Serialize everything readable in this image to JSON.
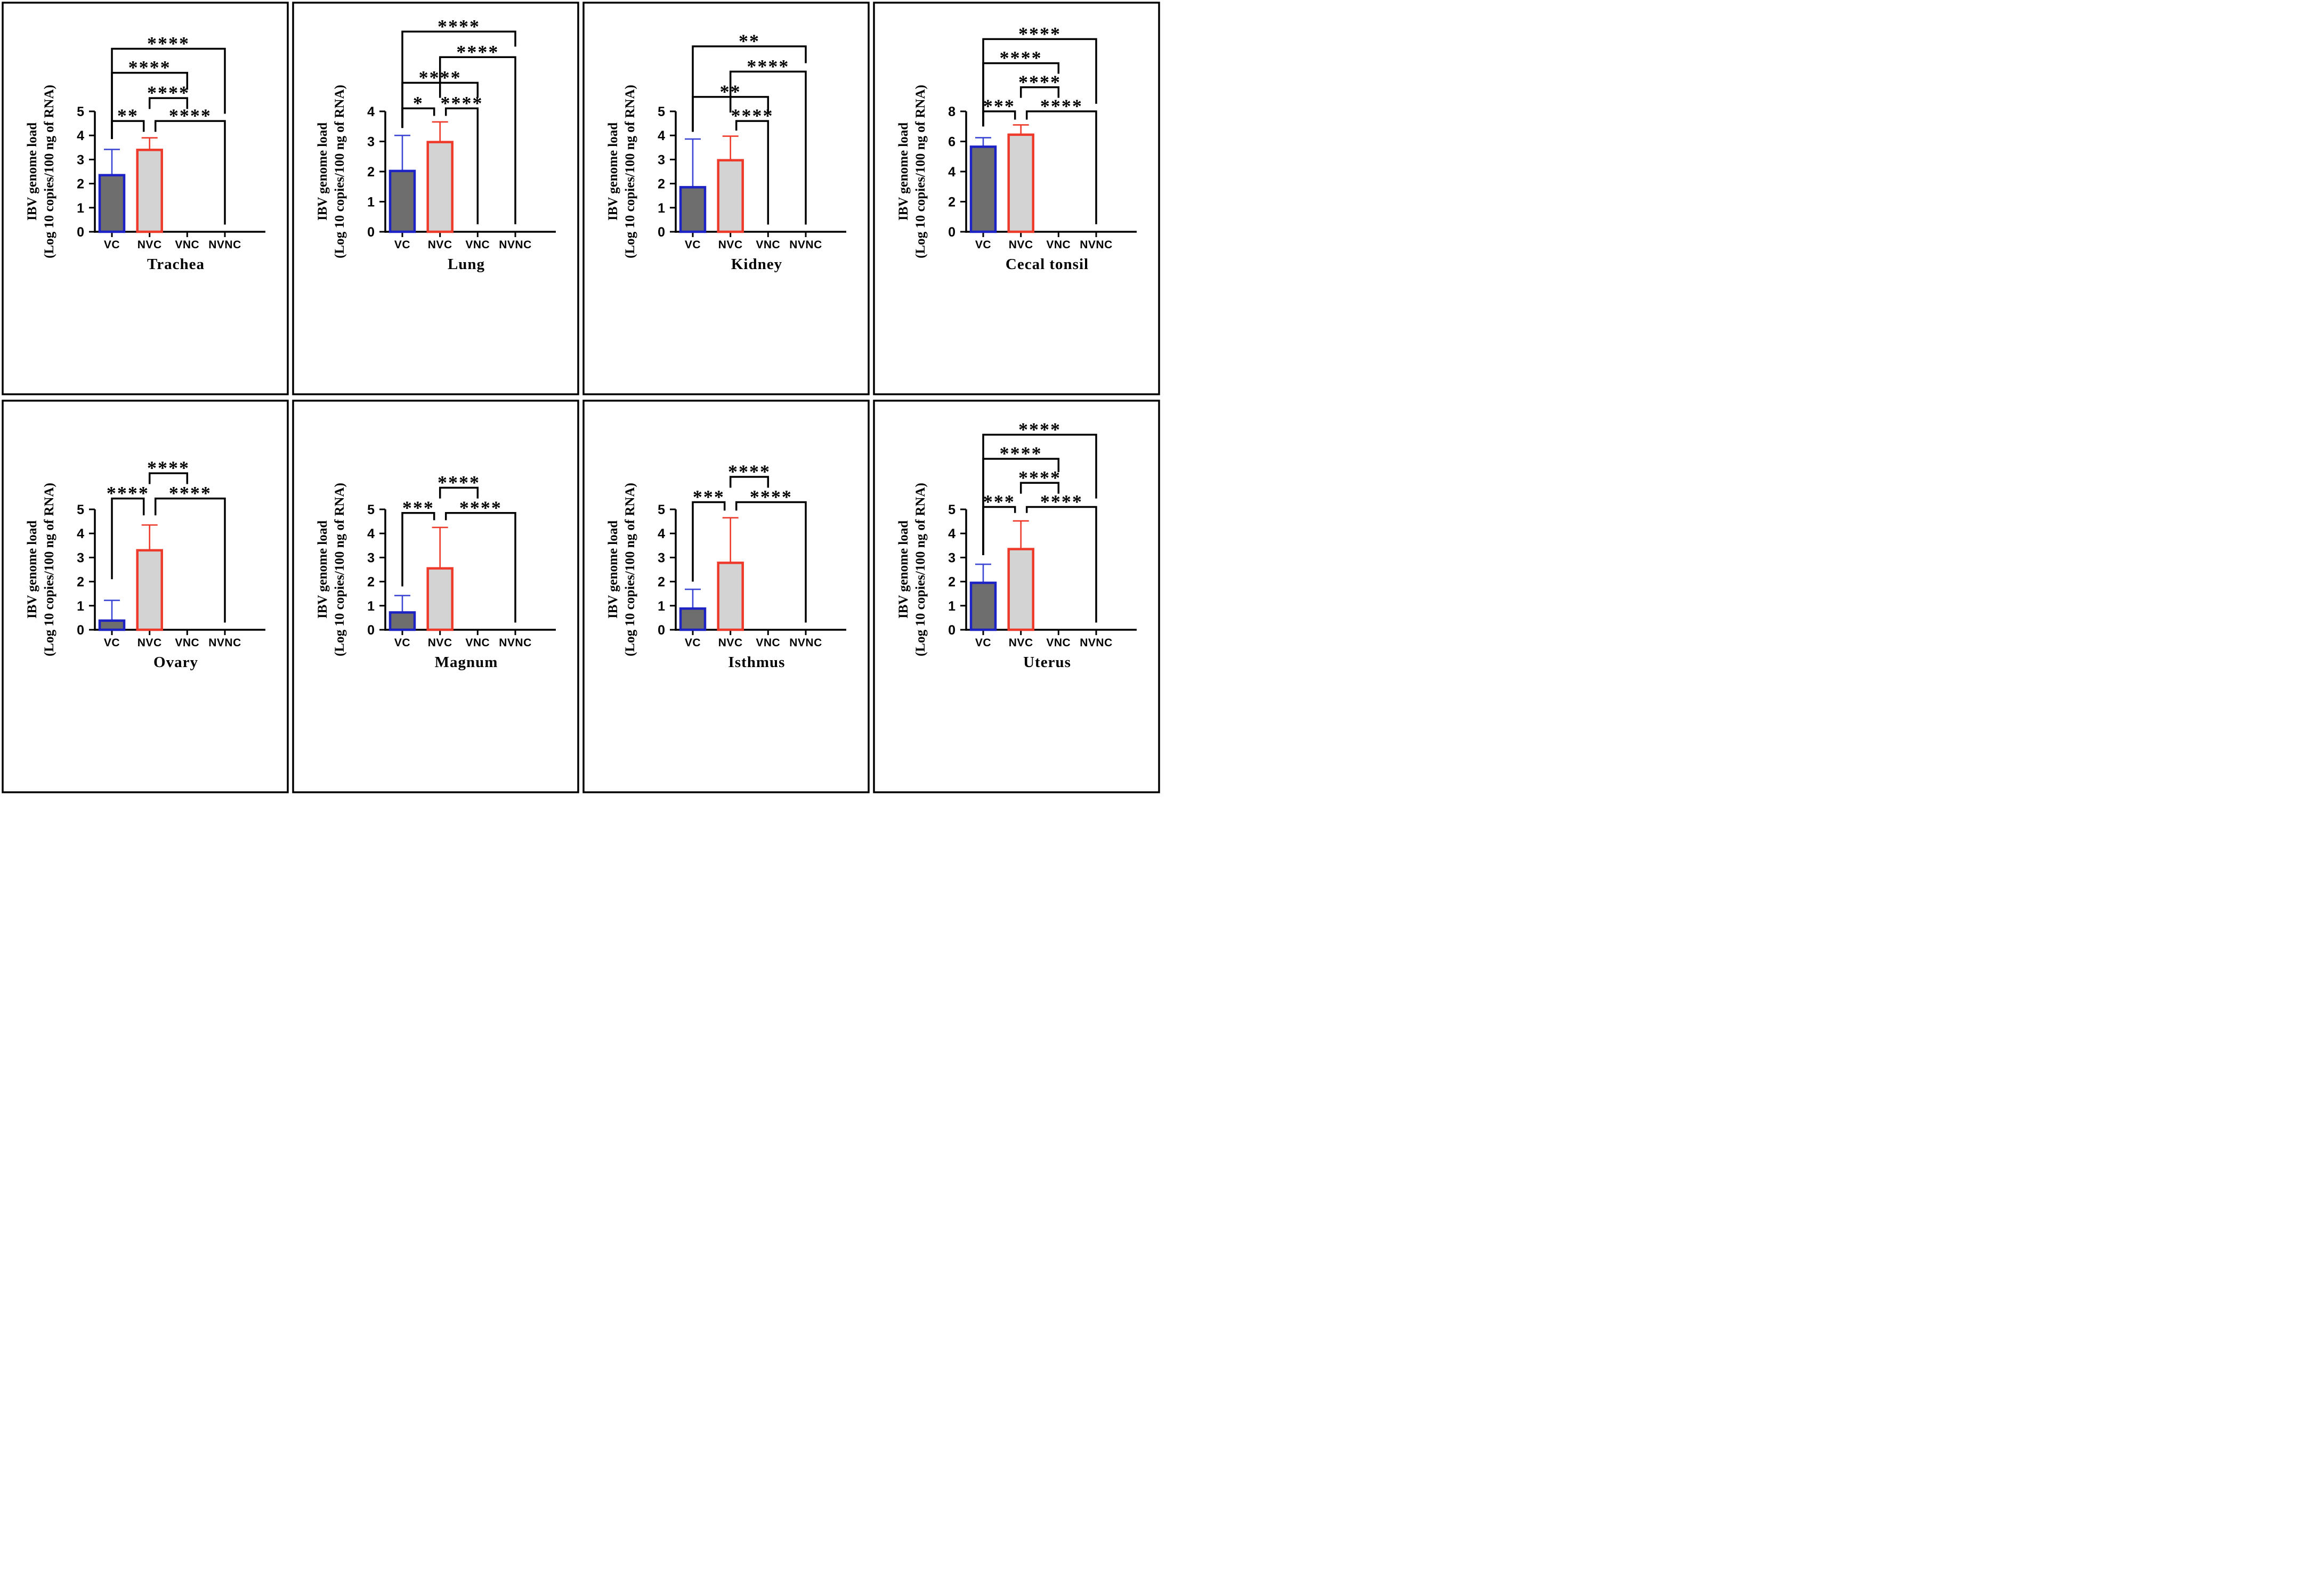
{
  "figure": {
    "y_axis_title_line1": "IBV genome load",
    "y_axis_title_line2": "(Log 10 copies/100 ng of RNA)",
    "categories": [
      "VC",
      "NVC",
      "VNC",
      "NVNC"
    ],
    "colors": {
      "vc_fill": "#6e6e6e",
      "vc_edge": "#1c22c3",
      "vc_error": "#3b46d2",
      "nvc_fill": "#d3d3d3",
      "nvc_edge": "#ee3a2a",
      "nvc_error": "#ee3a2a",
      "axis": "#000000",
      "frame": "#000000"
    }
  },
  "chart_data": [
    {
      "type": "bar",
      "title": "Trachea",
      "xlabel": "Trachea",
      "ylabel": "IBV genome load (Log 10 copies/100 ng of RNA)",
      "categories": [
        "VC",
        "NVC",
        "VNC",
        "NVNC"
      ],
      "ylim": [
        0,
        5
      ],
      "ytick_step": 1,
      "series": [
        {
          "name": "VC",
          "value": 2.35,
          "error_top": 3.42
        },
        {
          "name": "NVC",
          "value": 3.4,
          "error_top": 3.9
        },
        {
          "name": "VNC",
          "value": 0,
          "error_top": null
        },
        {
          "name": "NVNC",
          "value": 0,
          "error_top": null
        }
      ],
      "significance_brackets": [
        {
          "from": "VC",
          "to": "NVNC",
          "stars": "****",
          "level": 7.6,
          "from_end": 3.85,
          "to_end": 4.9
        },
        {
          "from": "VC",
          "to": "VNC",
          "stars": "****",
          "level": 6.6,
          "from_end": 3.85,
          "to_end": 5.9
        },
        {
          "from": "NVC",
          "to": "VNC",
          "stars": "****",
          "level": 5.55,
          "from_end": 5.1,
          "to_end": 5.1
        },
        {
          "from": "VC",
          "to": "NVC-",
          "stars": "**",
          "level": 4.6,
          "from_end": 3.85,
          "to_end": 4.15
        },
        {
          "from": "NVC+",
          "to": "NVNC",
          "stars": "****",
          "level": 4.6,
          "from_end": 4.15,
          "to_end": 0.3
        }
      ]
    },
    {
      "type": "bar",
      "title": "Lung",
      "xlabel": "Lung",
      "ylabel": "IBV genome load (Log 10 copies/100 ng of RNA)",
      "categories": [
        "VC",
        "NVC",
        "VNC",
        "NVNC"
      ],
      "ylim": [
        0,
        4
      ],
      "ytick_step": 1,
      "series": [
        {
          "name": "VC",
          "value": 2.02,
          "error_top": 3.2
        },
        {
          "name": "NVC",
          "value": 2.98,
          "error_top": 3.65
        },
        {
          "name": "VNC",
          "value": 0,
          "error_top": null
        },
        {
          "name": "NVNC",
          "value": 0,
          "error_top": null
        }
      ],
      "significance_brackets": [
        {
          "from": "VC",
          "to": "NVNC",
          "stars": "****",
          "level": 6.65,
          "from_end": 3.45,
          "to_end": 6.15
        },
        {
          "from": "NVC",
          "to": "NVNC",
          "stars": "****",
          "level": 5.8,
          "from_end": 4.45,
          "to_end": 0.25
        },
        {
          "from": "VC",
          "to": "VNC",
          "stars": "****",
          "level": 4.95,
          "from_end": 3.45,
          "to_end": 4.45
        },
        {
          "from": "VC",
          "to": "NVC-",
          "stars": "*",
          "level": 4.1,
          "from_end": 3.45,
          "to_end": 3.85
        },
        {
          "from": "NVC+",
          "to": "VNC",
          "stars": "****",
          "level": 4.1,
          "from_end": 3.85,
          "to_end": 0.25
        }
      ]
    },
    {
      "type": "bar",
      "title": "Kidney",
      "xlabel": "Kidney",
      "ylabel": "IBV genome load (Log 10 copies/100 ng of RNA)",
      "categories": [
        "VC",
        "NVC",
        "VNC",
        "NVNC"
      ],
      "ylim": [
        0,
        5
      ],
      "ytick_step": 1,
      "series": [
        {
          "name": "VC",
          "value": 1.85,
          "error_top": 3.85
        },
        {
          "name": "NVC",
          "value": 2.97,
          "error_top": 3.97
        },
        {
          "name": "VNC",
          "value": 0,
          "error_top": null
        },
        {
          "name": "NVNC",
          "value": 0,
          "error_top": null
        }
      ],
      "significance_brackets": [
        {
          "from": "VC",
          "to": "NVNC",
          "stars": "**",
          "level": 7.7,
          "from_end": 4.15,
          "to_end": 7.0
        },
        {
          "from": "NVC",
          "to": "NVNC",
          "stars": "****",
          "level": 6.65,
          "from_end": 4.95,
          "to_end": 0.3
        },
        {
          "from": "VC",
          "to": "VNC",
          "stars": "**",
          "level": 5.6,
          "from_end": 4.15,
          "to_end": 4.95
        },
        {
          "from": "NVC+",
          "to": "VNC",
          "stars": "****",
          "level": 4.6,
          "from_end": 4.2,
          "to_end": 0.3
        }
      ]
    },
    {
      "type": "bar",
      "title": "Cecal tonsil",
      "xlabel": "Cecal tonsil",
      "ylabel": "IBV genome load (Log 10 copies/100 ng of RNA)",
      "categories": [
        "VC",
        "NVC",
        "VNC",
        "NVNC"
      ],
      "ylim": [
        0,
        8
      ],
      "ytick_step": 2,
      "series": [
        {
          "name": "VC",
          "value": 5.65,
          "error_top": 6.25
        },
        {
          "name": "NVC",
          "value": 6.45,
          "error_top": 7.1
        },
        {
          "name": "VNC",
          "value": 0,
          "error_top": null
        },
        {
          "name": "NVNC",
          "value": 0,
          "error_top": null
        }
      ],
      "significance_brackets": [
        {
          "from": "VC",
          "to": "NVNC",
          "stars": "****",
          "level": 12.8,
          "from_end": 7.0,
          "to_end": 8.5
        },
        {
          "from": "VC",
          "to": "VNC",
          "stars": "****",
          "level": 11.2,
          "from_end": 7.0,
          "to_end": 10.5
        },
        {
          "from": "NVC",
          "to": "VNC",
          "stars": "****",
          "level": 9.6,
          "from_end": 8.9,
          "to_end": 8.9
        },
        {
          "from": "VC",
          "to": "NVC-",
          "stars": "***",
          "level": 8.0,
          "from_end": 7.0,
          "to_end": 7.45
        },
        {
          "from": "NVC+",
          "to": "NVNC",
          "stars": "****",
          "level": 8.0,
          "from_end": 7.45,
          "to_end": 0.5
        }
      ]
    },
    {
      "type": "bar",
      "title": "Ovary",
      "xlabel": "Ovary",
      "ylabel": "IBV genome load (Log 10 copies/100 ng of RNA)",
      "categories": [
        "VC",
        "NVC",
        "VNC",
        "NVNC"
      ],
      "ylim": [
        0,
        5
      ],
      "ytick_step": 1,
      "series": [
        {
          "name": "VC",
          "value": 0.38,
          "error_top": 1.22
        },
        {
          "name": "NVC",
          "value": 3.3,
          "error_top": 4.35
        },
        {
          "name": "VNC",
          "value": 0,
          "error_top": null
        },
        {
          "name": "NVNC",
          "value": 0,
          "error_top": null
        }
      ],
      "significance_brackets": [
        {
          "from": "NVC",
          "to": "VNC",
          "stars": "****",
          "level": 6.5,
          "from_end": 6.05,
          "to_end": 6.05
        },
        {
          "from": "VC",
          "to": "NVC-",
          "stars": "****",
          "level": 5.45,
          "from_end": 2.1,
          "to_end": 4.75
        },
        {
          "from": "NVC+",
          "to": "NVNC",
          "stars": "****",
          "level": 5.45,
          "from_end": 4.75,
          "to_end": 0.3
        }
      ]
    },
    {
      "type": "bar",
      "title": "Magnum",
      "xlabel": "Magnum",
      "ylabel": "IBV genome load (Log 10 copies/100 ng of RNA)",
      "categories": [
        "VC",
        "NVC",
        "VNC",
        "NVNC"
      ],
      "ylim": [
        0,
        5
      ],
      "ytick_step": 1,
      "series": [
        {
          "name": "VC",
          "value": 0.72,
          "error_top": 1.42
        },
        {
          "name": "NVC",
          "value": 2.55,
          "error_top": 4.25
        },
        {
          "name": "VNC",
          "value": 0,
          "error_top": null
        },
        {
          "name": "NVNC",
          "value": 0,
          "error_top": null
        }
      ],
      "significance_brackets": [
        {
          "from": "NVC",
          "to": "VNC",
          "stars": "****",
          "level": 5.9,
          "from_end": 5.45,
          "to_end": 5.45
        },
        {
          "from": "VC",
          "to": "NVC-",
          "stars": "***",
          "level": 4.85,
          "from_end": 1.8,
          "to_end": 4.55
        },
        {
          "from": "NVC+",
          "to": "NVNC",
          "stars": "****",
          "level": 4.85,
          "from_end": 4.55,
          "to_end": 0.3
        }
      ]
    },
    {
      "type": "bar",
      "title": "Isthmus",
      "xlabel": "Isthmus",
      "ylabel": "IBV genome load (Log 10 copies/100 ng of RNA)",
      "categories": [
        "VC",
        "NVC",
        "VNC",
        "NVNC"
      ],
      "ylim": [
        0,
        5
      ],
      "ytick_step": 1,
      "series": [
        {
          "name": "VC",
          "value": 0.88,
          "error_top": 1.68
        },
        {
          "name": "NVC",
          "value": 2.78,
          "error_top": 4.65
        },
        {
          "name": "VNC",
          "value": 0,
          "error_top": null
        },
        {
          "name": "NVNC",
          "value": 0,
          "error_top": null
        }
      ],
      "significance_brackets": [
        {
          "from": "NVC",
          "to": "VNC",
          "stars": "****",
          "level": 6.35,
          "from_end": 5.9,
          "to_end": 5.9
        },
        {
          "from": "VC",
          "to": "NVC-",
          "stars": "***",
          "level": 5.3,
          "from_end": 2.0,
          "to_end": 4.95
        },
        {
          "from": "NVC+",
          "to": "NVNC",
          "stars": "****",
          "level": 5.3,
          "from_end": 4.95,
          "to_end": 0.3
        }
      ]
    },
    {
      "type": "bar",
      "title": "Uterus",
      "xlabel": "Uterus",
      "ylabel": "IBV genome load (Log 10 copies/100 ng of RNA)",
      "categories": [
        "VC",
        "NVC",
        "VNC",
        "NVNC"
      ],
      "ylim": [
        0,
        5
      ],
      "ytick_step": 1,
      "series": [
        {
          "name": "VC",
          "value": 1.95,
          "error_top": 2.72
        },
        {
          "name": "NVC",
          "value": 3.35,
          "error_top": 4.52
        },
        {
          "name": "VNC",
          "value": 0,
          "error_top": null
        },
        {
          "name": "NVNC",
          "value": 0,
          "error_top": null
        }
      ],
      "significance_brackets": [
        {
          "from": "VC",
          "to": "NVNC",
          "stars": "****",
          "level": 8.1,
          "from_end": 3.1,
          "to_end": 5.45
        },
        {
          "from": "VC",
          "to": "VNC",
          "stars": "****",
          "level": 7.1,
          "from_end": 3.1,
          "to_end": 6.55
        },
        {
          "from": "NVC",
          "to": "VNC",
          "stars": "****",
          "level": 6.1,
          "from_end": 5.65,
          "to_end": 5.65
        },
        {
          "from": "VC",
          "to": "NVC-",
          "stars": "***",
          "level": 5.1,
          "from_end": 3.1,
          "to_end": 4.85
        },
        {
          "from": "NVC+",
          "to": "NVNC",
          "stars": "****",
          "level": 5.1,
          "from_end": 4.85,
          "to_end": 0.3
        }
      ]
    }
  ]
}
